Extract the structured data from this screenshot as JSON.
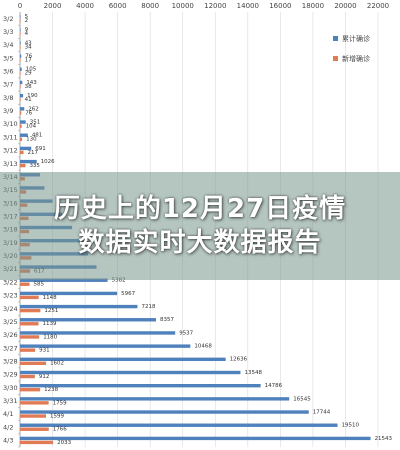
{
  "banner": {
    "title": "历史上的12月27日疫情\n数据实时大数据报告"
  },
  "chart_data": {
    "type": "bar",
    "orientation": "horizontal",
    "xlim": [
      0,
      22000
    ],
    "xticks": [
      "0",
      "2000",
      "4000",
      "6000",
      "8000",
      "10000",
      "12000",
      "14000",
      "16000",
      "18000",
      "20000",
      "22000"
    ],
    "grid": true,
    "legend_position": "right",
    "categories": [
      "3/2",
      "3/3",
      "3/4",
      "3/5",
      "3/6",
      "3/7",
      "3/8",
      "3/9",
      "3/10",
      "3/11",
      "3/12",
      "3/13",
      "3/14",
      "3/15",
      "3/16",
      "3/17",
      "3/18",
      "3/19",
      "3/20",
      "3/21",
      "3/22",
      "3/23",
      "3/24",
      "3/25",
      "3/26",
      "3/27",
      "3/28",
      "3/29",
      "3/30",
      "3/31",
      "4/1",
      "4/2",
      "4/3"
    ],
    "series": [
      {
        "name": "累计确诊",
        "color": "#4f81bd",
        "values": [
          5,
          9,
          43,
          76,
          105,
          143,
          190,
          262,
          351,
          481,
          691,
          1026,
          1230,
          1500,
          2000,
          2600,
          3200,
          3900,
          4200,
          4700,
          5382,
          5967,
          7218,
          8357,
          9537,
          10468,
          12636,
          13548,
          14786,
          16545,
          17744,
          19510,
          21543
        ],
        "labels": [
          "5",
          "9",
          "43",
          "76",
          "105",
          "143",
          "190",
          "262",
          "351",
          "481",
          "691",
          "1026",
          "",
          "",
          "",
          "",
          "",
          "",
          "",
          "",
          "5382",
          "5967",
          "7218",
          "8357",
          "9537",
          "10468",
          "12636",
          "13548",
          "14786",
          "16545",
          "17744",
          "19510",
          "21543"
        ]
      },
      {
        "name": "新增确诊",
        "color": "#e07b55",
        "values": [
          2,
          4,
          34,
          17,
          29,
          38,
          41,
          76,
          104,
          130,
          217,
          335,
          300,
          380,
          450,
          520,
          560,
          600,
          700,
          617,
          585,
          1148,
          1251,
          1139,
          1180,
          931,
          1602,
          912,
          1238,
          1759,
          1599,
          1766,
          2033
        ],
        "labels": [
          "2",
          "4",
          "34",
          "17",
          "29",
          "38",
          "41",
          "76",
          "104",
          "130",
          "217",
          "335",
          "",
          "",
          "",
          "",
          "",
          "",
          "",
          "617",
          "585",
          "1148",
          "1251",
          "1139",
          "1180",
          "931",
          "1602",
          "912",
          "1238",
          "1759",
          "1599",
          "1766",
          "2033"
        ]
      }
    ]
  }
}
